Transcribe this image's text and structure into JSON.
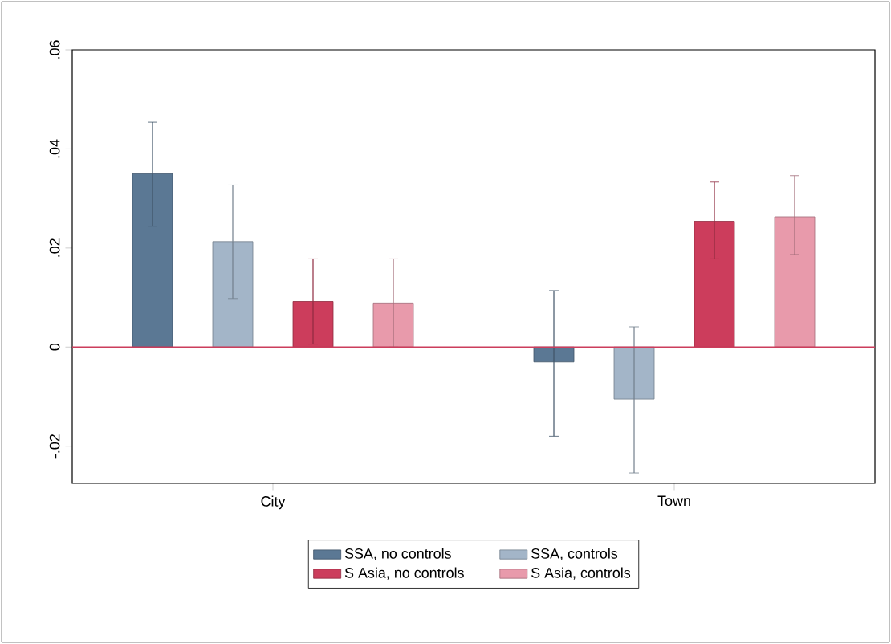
{
  "chart_data": {
    "type": "bar",
    "categories": [
      "City",
      "Town"
    ],
    "series": [
      {
        "name": "SSA, no controls",
        "color": "#5b7894",
        "values": [
          0.035,
          -0.003
        ],
        "errors": [
          [
            0.0244,
            0.0454
          ],
          [
            -0.018,
            0.0114
          ]
        ]
      },
      {
        "name": "SSA, controls",
        "color": "#a3b5c8",
        "values": [
          0.0213,
          -0.0105
        ],
        "errors": [
          [
            0.0098,
            0.0327
          ],
          [
            -0.0254,
            0.0041
          ]
        ]
      },
      {
        "name": "S Asia, no controls",
        "color": "#cc3d5c",
        "values": [
          0.0092,
          0.0254
        ],
        "errors": [
          [
            0.0006,
            0.0178
          ],
          [
            0.0178,
            0.0333
          ]
        ]
      },
      {
        "name": "S Asia, controls",
        "color": "#e89aab",
        "values": [
          0.0089,
          0.0263
        ],
        "errors": [
          [
            0.0,
            0.0178
          ],
          [
            0.0187,
            0.0346
          ]
        ]
      }
    ],
    "ylim": [
      -0.0275,
      0.06
    ],
    "yticks": [
      {
        "value": -0.02,
        "label": "-.02"
      },
      {
        "value": 0,
        "label": "0"
      },
      {
        "value": 0.02,
        "label": ".02"
      },
      {
        "value": 0.04,
        "label": ".04"
      },
      {
        "value": 0.06,
        "label": ".06"
      }
    ],
    "ref_lines": [
      {
        "axis": "y",
        "value": 0,
        "color": "#cc3d5c"
      }
    ],
    "grid": false,
    "legend": "bottom"
  }
}
